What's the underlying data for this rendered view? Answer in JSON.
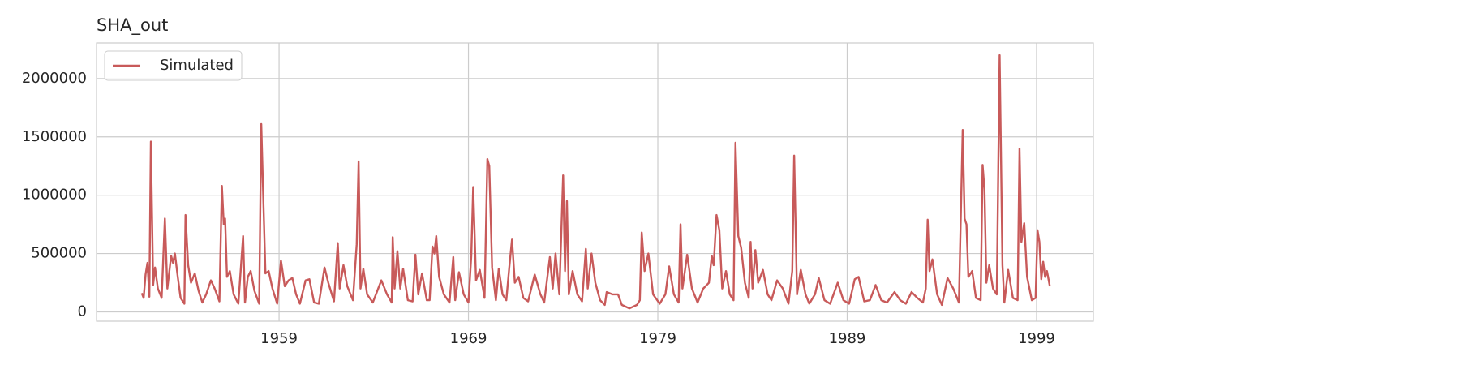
{
  "chart_data": {
    "type": "line",
    "title": "SHA_out",
    "x": [
      1951.75,
      1951.85,
      1951.95,
      1952.05,
      1952.15,
      1952.23,
      1952.35,
      1952.45,
      1952.6,
      1952.8,
      1952.97,
      1953.1,
      1953.3,
      1953.4,
      1953.5,
      1953.65,
      1953.8,
      1954.0,
      1954.06,
      1954.2,
      1954.35,
      1954.55,
      1954.75,
      1954.95,
      1955.15,
      1955.4,
      1955.6,
      1955.85,
      1955.98,
      1956.08,
      1956.15,
      1956.25,
      1956.4,
      1956.6,
      1956.85,
      1957.1,
      1957.2,
      1957.35,
      1957.5,
      1957.7,
      1957.95,
      1958.06,
      1958.18,
      1958.28,
      1958.45,
      1958.65,
      1958.9,
      1959.1,
      1959.3,
      1959.5,
      1959.7,
      1959.9,
      1960.1,
      1960.4,
      1960.6,
      1960.85,
      1961.1,
      1961.4,
      1961.6,
      1961.9,
      1962.1,
      1962.2,
      1962.4,
      1962.6,
      1962.9,
      1963.1,
      1963.2,
      1963.3,
      1963.45,
      1963.65,
      1963.95,
      1964.4,
      1964.7,
      1964.95,
      1965.0,
      1965.1,
      1965.25,
      1965.4,
      1965.55,
      1965.8,
      1966.05,
      1966.2,
      1966.35,
      1966.55,
      1966.8,
      1966.95,
      1967.1,
      1967.2,
      1967.3,
      1967.45,
      1967.7,
      1968.0,
      1968.2,
      1968.3,
      1968.5,
      1968.75,
      1969.0,
      1969.15,
      1969.25,
      1969.4,
      1969.6,
      1969.85,
      1970.0,
      1970.1,
      1970.25,
      1970.45,
      1970.6,
      1970.8,
      1971.0,
      1971.15,
      1971.3,
      1971.45,
      1971.65,
      1971.9,
      1972.15,
      1972.5,
      1972.8,
      1973.0,
      1973.3,
      1973.45,
      1973.6,
      1973.8,
      1974.0,
      1974.1,
      1974.2,
      1974.3,
      1974.5,
      1974.75,
      1975.0,
      1975.2,
      1975.3,
      1975.5,
      1975.7,
      1975.95,
      1976.2,
      1976.3,
      1976.6,
      1976.9,
      1977.1,
      1977.5,
      1977.9,
      1978.05,
      1978.15,
      1978.3,
      1978.5,
      1978.75,
      1979.1,
      1979.4,
      1979.6,
      1979.85,
      1980.1,
      1980.2,
      1980.3,
      1980.55,
      1980.8,
      1981.1,
      1981.4,
      1981.7,
      1981.85,
      1981.95,
      1982.1,
      1982.25,
      1982.4,
      1982.6,
      1982.8,
      1983.0,
      1983.1,
      1983.25,
      1983.4,
      1983.6,
      1983.8,
      1983.9,
      1984.0,
      1984.15,
      1984.3,
      1984.55,
      1984.8,
      1985.0,
      1985.3,
      1985.6,
      1985.9,
      1986.1,
      1986.2,
      1986.35,
      1986.55,
      1986.8,
      1987.0,
      1987.3,
      1987.5,
      1987.8,
      1988.1,
      1988.5,
      1988.8,
      1989.1,
      1989.4,
      1989.6,
      1989.9,
      1990.2,
      1990.5,
      1990.8,
      1991.1,
      1991.5,
      1991.8,
      1992.1,
      1992.4,
      1992.7,
      1993.0,
      1993.15,
      1993.25,
      1993.35,
      1993.5,
      1993.75,
      1994.0,
      1994.3,
      1994.6,
      1994.9,
      1995.1,
      1995.2,
      1995.3,
      1995.4,
      1995.6,
      1995.8,
      1996.05,
      1996.15,
      1996.25,
      1996.35,
      1996.5,
      1996.7,
      1996.9,
      1997.05,
      1997.2,
      1997.3,
      1997.5,
      1997.75,
      1998.0,
      1998.1,
      1998.2,
      1998.35,
      1998.5,
      1998.75,
      1998.95,
      1999.05,
      1999.15,
      1999.25,
      1999.35,
      1999.45,
      1999.55,
      1999.7
    ],
    "series": [
      {
        "name": "Simulated",
        "color": "#c85a5a",
        "values": [
          160000,
          120000,
          320000,
          420000,
          130000,
          1460000,
          230000,
          380000,
          200000,
          120000,
          800000,
          200000,
          480000,
          420000,
          500000,
          300000,
          120000,
          70000,
          830000,
          400000,
          250000,
          330000,
          180000,
          80000,
          150000,
          270000,
          200000,
          90000,
          1080000,
          750000,
          800000,
          300000,
          350000,
          150000,
          70000,
          650000,
          80000,
          300000,
          350000,
          180000,
          70000,
          1610000,
          900000,
          330000,
          350000,
          200000,
          70000,
          440000,
          220000,
          270000,
          290000,
          150000,
          70000,
          270000,
          280000,
          80000,
          70000,
          380000,
          250000,
          90000,
          590000,
          200000,
          400000,
          220000,
          100000,
          580000,
          1290000,
          200000,
          370000,
          150000,
          80000,
          270000,
          150000,
          80000,
          640000,
          200000,
          520000,
          200000,
          370000,
          100000,
          90000,
          490000,
          150000,
          330000,
          100000,
          100000,
          560000,
          500000,
          650000,
          300000,
          150000,
          80000,
          470000,
          100000,
          340000,
          150000,
          80000,
          480000,
          1070000,
          270000,
          360000,
          120000,
          1310000,
          1250000,
          380000,
          100000,
          370000,
          150000,
          100000,
          370000,
          620000,
          250000,
          300000,
          120000,
          90000,
          320000,
          150000,
          80000,
          470000,
          200000,
          500000,
          150000,
          1170000,
          350000,
          950000,
          150000,
          350000,
          150000,
          90000,
          540000,
          200000,
          500000,
          250000,
          100000,
          60000,
          170000,
          150000,
          150000,
          60000,
          30000,
          60000,
          100000,
          680000,
          350000,
          500000,
          150000,
          70000,
          150000,
          390000,
          150000,
          80000,
          750000,
          200000,
          490000,
          200000,
          80000,
          200000,
          250000,
          480000,
          400000,
          830000,
          700000,
          200000,
          350000,
          150000,
          100000,
          1450000,
          650000,
          550000,
          250000,
          120000,
          600000,
          200000,
          530000,
          250000,
          360000,
          150000,
          100000,
          270000,
          200000,
          70000,
          350000,
          1340000,
          150000,
          360000,
          150000,
          70000,
          150000,
          290000,
          100000,
          70000,
          250000,
          100000,
          70000,
          280000,
          300000,
          90000,
          100000,
          230000,
          100000,
          80000,
          170000,
          100000,
          70000,
          170000,
          120000,
          80000,
          200000,
          790000,
          350000,
          450000,
          150000,
          60000,
          290000,
          200000,
          80000,
          1560000,
          800000,
          750000,
          300000,
          350000,
          120000,
          100000,
          1260000,
          1050000,
          250000,
          400000,
          200000,
          150000,
          2200000,
          400000,
          80000,
          360000,
          120000,
          100000,
          1400000,
          600000,
          760000,
          300000,
          100000,
          120000,
          700000,
          600000,
          280000,
          430000,
          300000,
          350000,
          220000
        ]
      }
    ],
    "xlim": [
      1949.36,
      2002.0
    ],
    "xticks": [
      1959,
      1969,
      1979,
      1989,
      1999
    ],
    "ylim": [
      -80000,
      2305000
    ],
    "yticks": [
      0,
      500000,
      1000000,
      1500000,
      2000000
    ],
    "grid": true,
    "legend": "upper left"
  }
}
